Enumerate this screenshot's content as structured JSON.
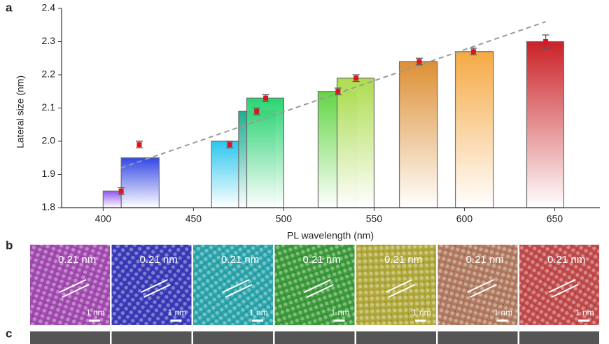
{
  "panel_labels": [
    "a",
    "b",
    "c"
  ],
  "chart_data": {
    "type": "bar",
    "x_label": "PL wavelength (nm)",
    "y_label": "Lateral size (nm)",
    "xlim": [
      377,
      675
    ],
    "xticks": [
      400,
      450,
      500,
      550,
      600,
      650
    ],
    "ylim": [
      1.8,
      2.4
    ],
    "yticks": [
      {
        "value": 1.8,
        "label": "1.8"
      },
      1.9,
      {
        "value": 2.0,
        "label": "2.0"
      },
      2.1,
      2.2,
      2.3,
      2.4
    ],
    "bars": {
      "left": [
        400,
        410,
        460,
        475,
        479.5,
        519,
        529.5,
        564,
        595,
        634.5
      ],
      "right": [
        411,
        431,
        479.5,
        495,
        500,
        540,
        550,
        585,
        616,
        655
      ],
      "values": [
        1.85,
        1.95,
        2.0,
        2.09,
        2.13,
        2.15,
        2.19,
        2.24,
        2.27,
        2.3
      ],
      "colors": [
        "#8a4cf0",
        "#2a3ee6",
        "#22c4ee",
        "#14a88a",
        "#1fd36a",
        "#5ad43a",
        "#a9db45",
        "#dc8a2a",
        "#f5a53a",
        "#c8161c"
      ]
    },
    "points": {
      "x": [
        410,
        420,
        470,
        485,
        490,
        530,
        540,
        575,
        605,
        645
      ],
      "values": [
        1.85,
        1.99,
        1.99,
        2.09,
        2.13,
        2.15,
        2.19,
        2.24,
        2.27,
        2.3
      ],
      "errors": [
        0.01,
        0.01,
        0.01,
        0.01,
        0.01,
        0.01,
        0.01,
        0.01,
        0.01,
        0.02
      ],
      "color": "#e0141b"
    },
    "fit": {
      "x": [
        410,
        645
      ],
      "values": [
        1.92,
        2.36
      ],
      "color": "#9a9a9a"
    }
  },
  "tiles": [
    {
      "color": "#a24ab0",
      "label": "0.21 nm",
      "scale": "1 nm"
    },
    {
      "color": "#3a3ab8",
      "label": "0.21 nm",
      "scale": "1 nm"
    },
    {
      "color": "#2aa4aa",
      "label": "0.21 nm",
      "scale": "1 nm"
    },
    {
      "color": "#3c9a3a",
      "label": "0.21 nm",
      "scale": "1 nm"
    },
    {
      "color": "#b0a83a",
      "label": "0.21 nm",
      "scale": "1 nm"
    },
    {
      "color": "#b07a60",
      "label": "0.21 nm",
      "scale": "1 nm"
    },
    {
      "color": "#c04a4a",
      "label": "0.21 nm",
      "scale": "1 nm"
    }
  ]
}
